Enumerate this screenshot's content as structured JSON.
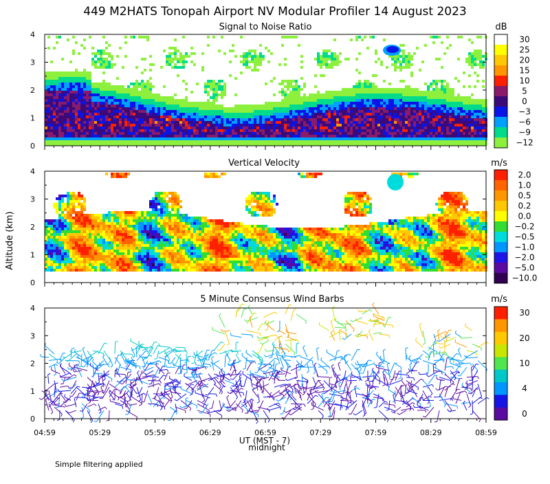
{
  "title": "449 M2HATS Tonopah Airport NV Modular Profiler 14 August 2023",
  "ylabel": "Altitude (km)",
  "xlabel": "UT (MST - 7)",
  "xlabel_sub": "midnight",
  "footnote": "Simple filtering applied",
  "chart_data": [
    {
      "type": "heatmap",
      "title": "Signal to Noise Ratio",
      "unit": "dB",
      "xlabel": "UT (MST - 7)",
      "ylabel": "Altitude (km)",
      "ylim": [
        0,
        4
      ],
      "yticks": [
        "0",
        "1",
        "2",
        "3",
        "4"
      ],
      "xticks": [
        "04:59",
        "05:29",
        "05:59",
        "06:29",
        "06:59",
        "07:29",
        "07:59",
        "08:29",
        "08:59"
      ],
      "colorbar": [
        {
          "label": "30",
          "color": "#ffffff"
        },
        {
          "label": "25",
          "color": "#ffff00"
        },
        {
          "label": "20",
          "color": "#ffc800"
        },
        {
          "label": "15",
          "color": "#ff9600"
        },
        {
          "label": "10",
          "color": "#ff2000"
        },
        {
          "label": "5",
          "color": "#8a1a6a"
        },
        {
          "label": "0",
          "color": "#3c0a78"
        },
        {
          "label": "−3",
          "color": "#0a14e6"
        },
        {
          "label": "−6",
          "color": "#00a0ff"
        },
        {
          "label": "−9",
          "color": "#00dc8c"
        },
        {
          "label": "−12",
          "color": "#8cf03c"
        }
      ]
    },
    {
      "type": "heatmap",
      "title": "Vertical Velocity",
      "unit": "m/s",
      "ylim": [
        0,
        4
      ],
      "yticks": [
        "0",
        "1",
        "2",
        "3",
        "4"
      ],
      "xticks": [
        "04:59",
        "05:29",
        "05:59",
        "06:29",
        "06:59",
        "07:29",
        "07:59",
        "08:29",
        "08:59"
      ],
      "colorbar": [
        {
          "label": "2.0",
          "color": "#ff2000"
        },
        {
          "label": "1.0",
          "color": "#ff6400"
        },
        {
          "label": "0.5",
          "color": "#ff9600"
        },
        {
          "label": "0.2",
          "color": "#ffc800"
        },
        {
          "label": "0.0",
          "color": "#ffff00"
        },
        {
          "label": "−0.2",
          "color": "#32dc32"
        },
        {
          "label": "−0.5",
          "color": "#00dcdc"
        },
        {
          "label": "−1.0",
          "color": "#0096ff"
        },
        {
          "label": "−2.0",
          "color": "#1e14e6"
        },
        {
          "label": "−5.0",
          "color": "#5a0aa0"
        },
        {
          "label": "−10.0",
          "color": "#320050"
        }
      ]
    },
    {
      "type": "scatter",
      "title": "5 Minute Consensus Wind Barbs",
      "unit": "m/s",
      "ylim": [
        0,
        4
      ],
      "yticks": [
        "0",
        "1",
        "2",
        "3",
        "4"
      ],
      "xticks": [
        "04:59",
        "05:29",
        "05:59",
        "06:29",
        "06:59",
        "07:29",
        "07:59",
        "08:29",
        "08:59"
      ],
      "colorbar": [
        {
          "label": "30",
          "color": "#ff2000"
        },
        {
          "label": "",
          "color": "#ff9600"
        },
        {
          "label": "20",
          "color": "#ffc800"
        },
        {
          "label": "",
          "color": "#c8e600"
        },
        {
          "label": "10",
          "color": "#50e650"
        },
        {
          "label": "",
          "color": "#00c8c8"
        },
        {
          "label": "4",
          "color": "#0096ff"
        },
        {
          "label": "",
          "color": "#1414e6"
        },
        {
          "label": "0",
          "color": "#5a0aa0"
        }
      ]
    }
  ]
}
